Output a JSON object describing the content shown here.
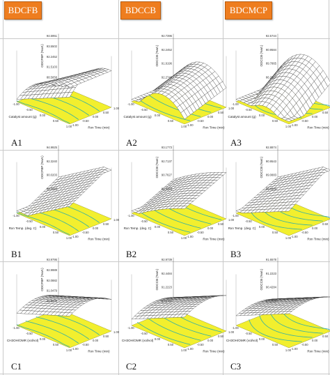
{
  "headers": [
    "BDCFB",
    "BDCCB",
    "BDCMCP"
  ],
  "rows": [
    {
      "panels": [
        {
          "label": "A1",
          "zlabel": "ODCFBP (%wt.)",
          "ticks": [
            "94.5951",
            "93.5502",
            "92.2452",
            "91.5103",
            "88.5658"
          ],
          "xlabel": "Catalyst amount (g)",
          "ylabel": "Rxn Time (min)"
        },
        {
          "label": "A2",
          "zlabel": "ODCCB (%wt.)",
          "ticks": [
            "92.7396",
            "92.2452",
            "91.9196",
            "92.2740"
          ],
          "xlabel": "Catalyst amount (g)",
          "ylabel": "Rxn Time (min)"
        },
        {
          "label": "A3",
          "zlabel": "ODCCB (%wt.)",
          "ticks": [
            "92.5744",
            "90.9584",
            "89.7865",
            "86.2327"
          ],
          "xlabel": "Catalyst amount (g)",
          "ylabel": "Rxn Time (min)"
        }
      ]
    },
    {
      "panels": [
        {
          "label": "B1",
          "zlabel": "ODCFBP (%wt.)",
          "ticks": [
            "94.9925",
            "92.3240",
            "90.0203",
            "88.5663"
          ],
          "xlabel": "Rxn Temp. (deg. C)",
          "ylabel": "Rxn Time (min)"
        },
        {
          "label": "B2",
          "zlabel": "ODCCB (%wt.)",
          "ticks": [
            "93.1773",
            "92.7137",
            "90.7627",
            "89.3250"
          ],
          "xlabel": "Rxn Temp. (deg. C)",
          "ylabel": "Rxn Time (min)"
        },
        {
          "label": "B3",
          "zlabel": "ODCCB (%wt.)",
          "ticks": [
            "92.8874",
            "90.9543",
            "89.0883",
            "86.6206"
          ],
          "xlabel": "Rxn Temp. (deg. C)",
          "ylabel": "Rxn Time (min)"
        }
      ]
    },
    {
      "panels": [
        {
          "label": "C1",
          "zlabel": "ODCFBP (%wt.)",
          "ticks": [
            "93.9795",
            "92.9989",
            "92.0882",
            "91.0479",
            "90.5478"
          ],
          "xlabel": "CH3OH/OMR (vol/vol)",
          "ylabel": "Rxn Time (min)"
        },
        {
          "label": "C2",
          "zlabel": "ODCCB (%wt.)",
          "ticks": [
            "92.9739",
            "92.4484",
            "91.2223",
            "90.9735"
          ],
          "xlabel": "CH3OH/OMR (vol/vol)",
          "ylabel": "Rxn Time (min)"
        },
        {
          "label": "C3",
          "zlabel": "ODCCB (%wt.)",
          "ticks": [
            "91.6578",
            "91.2223",
            "90.4284",
            "89.9979"
          ],
          "xlabel": "CH3OH/OMR (vol/vol)",
          "ylabel": "Rxn Time (min)"
        }
      ]
    }
  ],
  "axis_ticks": {
    "x": [
      "1.00",
      "0.50",
      "0.00",
      "-0.50",
      "-1.00"
    ],
    "y": [
      "1.00",
      "0.50",
      "0.00",
      "-0.50",
      "-1.00"
    ]
  },
  "colors": {
    "header_bg": "#ee7d1f",
    "floor": "#f2ef2e",
    "contour": "#2fb0a8",
    "mesh": "#2b2b2b"
  }
}
